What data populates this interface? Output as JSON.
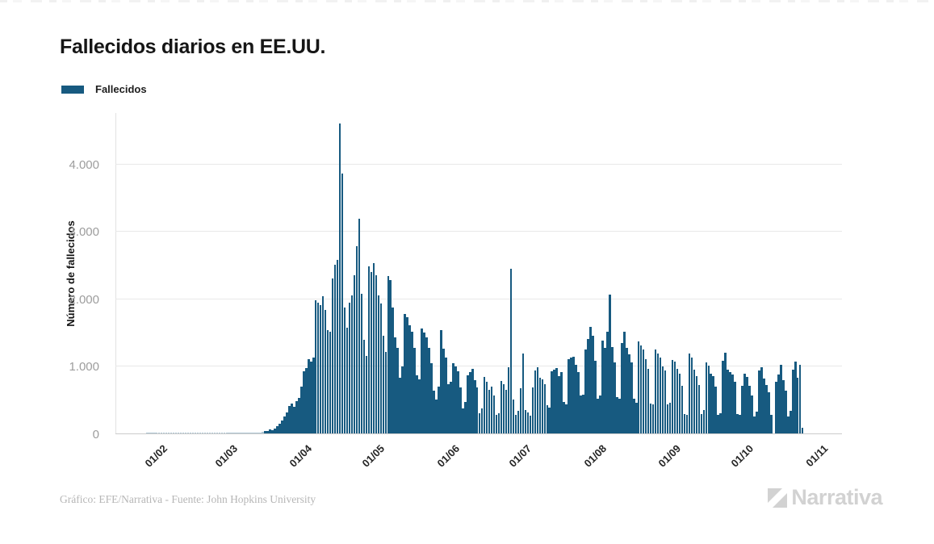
{
  "header": {
    "title": "Fallecidos diarios en EE.UU."
  },
  "legend": {
    "label": "Fallecidos"
  },
  "footer": {
    "credit": "Gráfico: EFE/Narrativa - Fuente: John Hopkins University",
    "brand": "Narrativa"
  },
  "colors": {
    "bar": "#175a80",
    "grid": "#e8e8e8",
    "axis": "#cccccc",
    "tick_text": "#9d9d9d",
    "brand_gray": "#d2d2d2"
  },
  "chart_data": {
    "type": "bar",
    "title": "Fallecidos diarios en EE.UU.",
    "series_name": "Fallecidos",
    "xlabel": "",
    "ylabel": "Número de fallecidos",
    "ylim": [
      0,
      4760
    ],
    "grid": "horizontal",
    "legend_position": "top-left",
    "bar_color": "#175a80",
    "x_unit": "day",
    "x_start_date": "25/01/2020",
    "x_ticks": [
      {
        "label": "01/02",
        "day": 7
      },
      {
        "label": "01/03",
        "day": 36
      },
      {
        "label": "01/04",
        "day": 67
      },
      {
        "label": "01/05",
        "day": 97
      },
      {
        "label": "01/06",
        "day": 128
      },
      {
        "label": "01/07",
        "day": 158
      },
      {
        "label": "01/08",
        "day": 189
      },
      {
        "label": "01/09",
        "day": 220
      },
      {
        "label": "01/10",
        "day": 250
      },
      {
        "label": "01/11",
        "day": 281
      }
    ],
    "y_ticks": [
      {
        "value": 0,
        "label": "0"
      },
      {
        "value": 1000,
        "label": "1.000"
      },
      {
        "value": 2000,
        "label": "2.000"
      },
      {
        "value": 3000,
        "label": "3.000"
      },
      {
        "value": 4000,
        "label": "4.000"
      }
    ],
    "values": [
      0,
      0,
      0,
      0,
      0,
      0,
      0,
      0,
      0,
      0,
      0,
      0,
      0,
      0,
      0,
      0,
      0,
      0,
      0,
      0,
      0,
      0,
      0,
      0,
      0,
      0,
      0,
      0,
      0,
      0,
      0,
      0,
      1,
      1,
      1,
      2,
      3,
      2,
      4,
      3,
      5,
      6,
      4,
      8,
      10,
      11,
      14,
      18,
      24,
      31,
      42,
      56,
      52,
      68,
      112,
      141,
      186,
      247,
      312,
      401,
      445,
      396,
      484,
      528,
      693,
      925,
      970,
      1104,
      1061,
      1130,
      1970,
      1940,
      1906,
      2035,
      1830,
      1528,
      1504,
      2299,
      2494,
      2569,
      4591,
      3857,
      1867,
      1561,
      1939,
      2040,
      2341,
      2770,
      3176,
      2065,
      1384,
      1150,
      2470,
      2390,
      2520,
      2343,
      2040,
      1930,
      1450,
      1208,
      2330,
      2270,
      1870,
      1420,
      1270,
      820,
      990,
      1770,
      1720,
      1600,
      1510,
      1270,
      865,
      805,
      1552,
      1500,
      1418,
      1263,
      1036,
      638,
      500,
      693,
      1535,
      1260,
      1120,
      730,
      770,
      1045,
      995,
      921,
      676,
      373,
      470,
      856,
      906,
      960,
      790,
      680,
      300,
      370,
      840,
      760,
      650,
      690,
      560,
      270,
      305,
      780,
      730,
      650,
      980,
      2437,
      500,
      270,
      335,
      670,
      1180,
      350,
      310,
      265,
      680,
      930,
      980,
      830,
      800,
      730,
      420,
      380,
      920,
      950,
      963,
      850,
      910,
      470,
      430,
      1100,
      1120,
      1140,
      1019,
      910,
      560,
      580,
      1244,
      1403,
      1580,
      1442,
      1080,
      515,
      560,
      1380,
      1262,
      1504,
      2060,
      1280,
      1050,
      540,
      510,
      1340,
      1510,
      1270,
      1170,
      1050,
      510,
      450,
      1360,
      1300,
      1240,
      1100,
      960,
      440,
      430,
      1240,
      1180,
      1130,
      990,
      930,
      430,
      450,
      1090,
      1060,
      960,
      880,
      700,
      290,
      270,
      1180,
      1130,
      950,
      850,
      720,
      290,
      350,
      1050,
      1010,
      890,
      850,
      690,
      270,
      300,
      1080,
      1200,
      940,
      910,
      870,
      760,
      290,
      270,
      700,
      890,
      840,
      700,
      560,
      250,
      320,
      930,
      980,
      810,
      720,
      610,
      270,
      null,
      760,
      870,
      1020,
      790,
      640,
      250,
      330,
      940,
      1060,
      830,
      1020,
      80
    ]
  }
}
